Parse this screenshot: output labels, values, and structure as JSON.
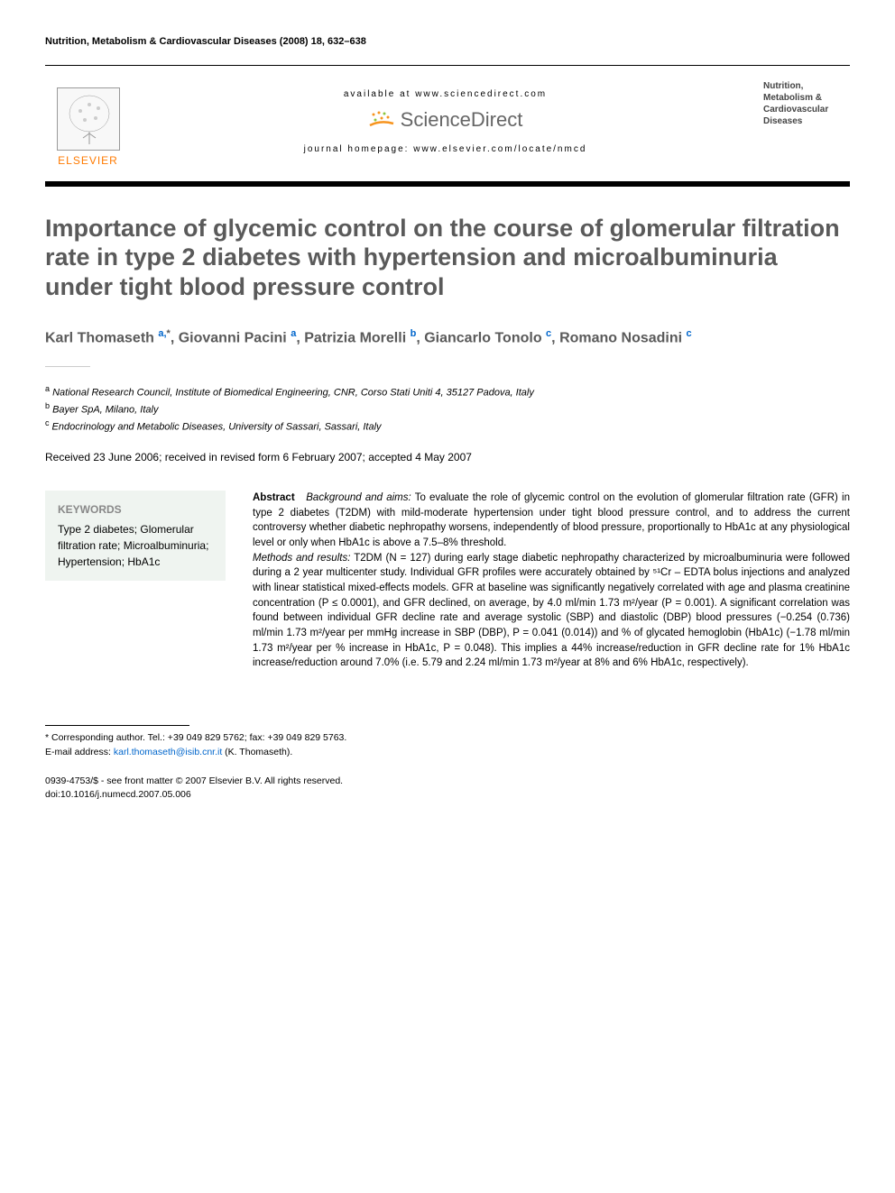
{
  "running_header": "Nutrition, Metabolism & Cardiovascular Diseases (2008) 18, 632–638",
  "banner": {
    "elsevier": "ELSEVIER",
    "available_at": "available at www.sciencedirect.com",
    "sciencedirect": "ScienceDirect",
    "homepage": "journal homepage: www.elsevier.com/locate/nmcd",
    "journal_cover": "Nutrition, Metabolism & Cardiovascular Diseases"
  },
  "title": "Importance of glycemic control on the course of glomerular filtration rate in type 2 diabetes with hypertension and microalbuminuria under tight blood pressure control",
  "authors_html": "Karl Thomaseth <sup><a class='author-link'>a,</a>*</sup>, Giovanni Pacini <sup><a class='author-link'>a</a></sup>, Patrizia Morelli <sup><a class='author-link'>b</a></sup>, Giancarlo Tonolo <sup><a class='author-link'>c</a></sup>, Romano Nosadini <sup><a class='author-link'>c</a></sup>",
  "affiliations": [
    {
      "sup": "a",
      "text": "National Research Council, Institute of Biomedical Engineering, CNR, Corso Stati Uniti 4, 35127 Padova, Italy"
    },
    {
      "sup": "b",
      "text": "Bayer SpA, Milano, Italy"
    },
    {
      "sup": "c",
      "text": "Endocrinology and Metabolic Diseases, University of Sassari, Sassari, Italy"
    }
  ],
  "received": "Received 23 June 2006; received in revised form 6 February 2007; accepted 4 May 2007",
  "keywords": {
    "heading": "KEYWORDS",
    "items": "Type 2 diabetes; Glomerular filtration rate; Microalbuminuria; Hypertension; HbA1c"
  },
  "abstract": {
    "label": "Abstract",
    "bg_label": "Background and aims:",
    "bg_text": " To evaluate the role of glycemic control on the evolution of glomerular filtration rate (GFR) in type 2 diabetes (T2DM) with mild-moderate hypertension under tight blood pressure control, and to address the current controversy whether diabetic nephropathy worsens, independently of blood pressure, proportionally to HbA1c at any physiological level or only when HbA1c is above a 7.5–8% threshold.",
    "mr_label": "Methods and results:",
    "mr_text": " T2DM (N = 127) during early stage diabetic nephropathy characterized by microalbuminuria were followed during a 2 year multicenter study. Individual GFR profiles were accurately obtained by ⁵¹Cr – EDTA bolus injections and analyzed with linear statistical mixed-effects models. GFR at baseline was significantly negatively correlated with age and plasma creatinine concentration (P ≤ 0.0001), and GFR declined, on average, by 4.0 ml/min 1.73 m²/year (P = 0.001). A significant correlation was found between individual GFR decline rate and average systolic (SBP) and diastolic (DBP) blood pressures (−0.254 (0.736) ml/min 1.73 m²/year per mmHg increase in SBP (DBP), P = 0.041 (0.014)) and % of glycated hemoglobin (HbA1c) (−1.78 ml/min 1.73 m²/year per % increase in HbA1c, P = 0.048). This implies a 44% increase/reduction in GFR decline rate for 1% HbA1c increase/reduction around 7.0% (i.e. 5.79 and 2.24 ml/min 1.73 m²/year at 8% and 6% HbA1c, respectively)."
  },
  "footnotes": {
    "corresponding": "* Corresponding author. Tel.: +39 049 829 5762; fax: +39 049 829 5763.",
    "email_label": "E-mail address:",
    "email": "karl.thomaseth@isib.cnr.it",
    "email_suffix": " (K. Thomaseth)."
  },
  "copyright": {
    "line1": "0939-4753/$ - see front matter © 2007 Elsevier B.V. All rights reserved.",
    "line2": "doi:10.1016/j.numecd.2007.05.006"
  },
  "colors": {
    "title_gray": "#5a5a5a",
    "elsevier_orange": "#ff7a00",
    "link_blue": "#0066cc",
    "keywords_bg": "#eff4f0",
    "sd_orange": "#f7941e",
    "sd_green": "#8dc63f"
  }
}
